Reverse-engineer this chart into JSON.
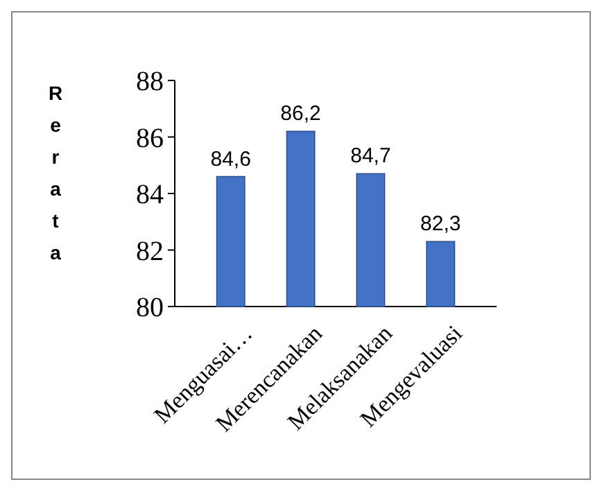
{
  "chart_data": {
    "type": "bar",
    "ylabel": "Rerata",
    "categories": [
      "Menguasai…",
      "Merencanakan",
      "Melaksanakan",
      "Mengevaluasi"
    ],
    "values": [
      84.6,
      86.2,
      84.7,
      82.3
    ],
    "value_labels": [
      "84,6",
      "86,2",
      "84,7",
      "82,3"
    ],
    "color": "#4472c4",
    "ylim": [
      80,
      88
    ],
    "yticks": [
      80,
      82,
      84,
      86,
      88
    ],
    "grid": false
  }
}
